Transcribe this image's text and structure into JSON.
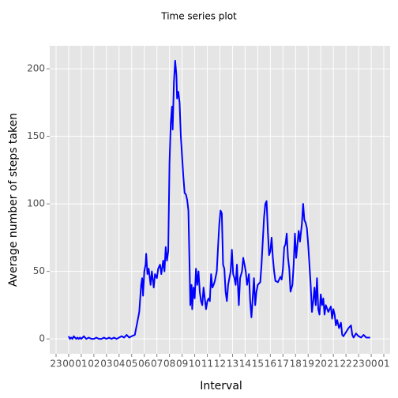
{
  "chart_data": {
    "type": "line",
    "title": "Time series plot",
    "x_label": "Interval",
    "y_label": "Average number of steps taken",
    "color": "#0000ff",
    "grid": true,
    "x": [
      0,
      0.1,
      0.2,
      0.3,
      0.4,
      0.5,
      0.6,
      0.7,
      0.8,
      0.9,
      1.0,
      1.2,
      1.4,
      1.6,
      1.8,
      2.0,
      2.2,
      2.4,
      2.6,
      2.8,
      3.0,
      3.2,
      3.4,
      3.6,
      3.8,
      4.0,
      4.2,
      4.4,
      4.6,
      4.8,
      5.0,
      5.25,
      5.5,
      5.6,
      5.75,
      5.83,
      5.9,
      6.0,
      6.1,
      6.15,
      6.25,
      6.35,
      6.5,
      6.6,
      6.75,
      6.85,
      7.0,
      7.1,
      7.25,
      7.35,
      7.5,
      7.6,
      7.7,
      7.8,
      7.9,
      8.0,
      8.1,
      8.2,
      8.25,
      8.35,
      8.45,
      8.55,
      8.6,
      8.7,
      8.8,
      8.9,
      9.0,
      9.1,
      9.2,
      9.3,
      9.4,
      9.5,
      9.6,
      9.65,
      9.75,
      9.8,
      9.9,
      10.0,
      10.1,
      10.2,
      10.3,
      10.4,
      10.5,
      10.6,
      10.7,
      10.8,
      10.9,
      11.0,
      11.1,
      11.2,
      11.3,
      11.4,
      11.5,
      11.6,
      11.75,
      11.85,
      11.95,
      12.05,
      12.15,
      12.25,
      12.35,
      12.45,
      12.55,
      12.65,
      12.75,
      12.85,
      12.95,
      13.05,
      13.15,
      13.25,
      13.35,
      13.5,
      13.6,
      13.75,
      13.85,
      13.95,
      14.05,
      14.15,
      14.3,
      14.4,
      14.5,
      14.6,
      14.7,
      14.8,
      14.9,
      15.0,
      15.2,
      15.3,
      15.5,
      15.6,
      15.7,
      15.8,
      15.9,
      16.0,
      16.1,
      16.2,
      16.3,
      16.4,
      16.6,
      16.8,
      16.9,
      17.0,
      17.1,
      17.2,
      17.3,
      17.4,
      17.5,
      17.6,
      17.75,
      17.85,
      17.95,
      18.05,
      18.15,
      18.25,
      18.35,
      18.5,
      18.6,
      18.7,
      18.8,
      18.9,
      19.0,
      19.1,
      19.2,
      19.3,
      19.4,
      19.5,
      19.6,
      19.7,
      19.8,
      19.9,
      20.0,
      20.1,
      20.2,
      20.3,
      20.4,
      20.6,
      20.8,
      20.9,
      21.0,
      21.1,
      21.2,
      21.3,
      21.45,
      21.6,
      21.7,
      21.8,
      22.0,
      22.2,
      22.4,
      22.5,
      22.6,
      22.8,
      23.0,
      23.2,
      23.4,
      23.6,
      23.92
    ],
    "values": [
      2,
      0,
      1,
      0,
      2,
      1,
      0,
      1,
      0,
      1,
      0,
      2,
      0,
      1,
      0,
      0,
      1,
      0,
      0,
      1,
      0,
      1,
      0,
      1,
      0,
      1,
      2,
      1,
      3,
      1,
      2,
      3,
      15,
      20,
      40,
      45,
      32,
      50,
      55,
      63,
      48,
      52,
      40,
      50,
      38,
      48,
      45,
      52,
      55,
      48,
      58,
      50,
      68,
      58,
      65,
      130,
      160,
      172,
      155,
      190,
      206,
      195,
      178,
      183,
      175,
      150,
      135,
      120,
      108,
      107,
      103,
      95,
      50,
      25,
      40,
      22,
      38,
      30,
      52,
      40,
      50,
      35,
      28,
      25,
      38,
      30,
      22,
      28,
      30,
      28,
      48,
      38,
      40,
      43,
      50,
      68,
      85,
      95,
      93,
      55,
      52,
      35,
      28,
      40,
      45,
      50,
      66,
      48,
      45,
      40,
      55,
      25,
      45,
      50,
      60,
      55,
      50,
      40,
      48,
      28,
      16,
      30,
      45,
      25,
      35,
      40,
      42,
      55,
      90,
      100,
      102,
      80,
      62,
      65,
      75,
      60,
      50,
      43,
      42,
      46,
      44,
      52,
      68,
      70,
      78,
      60,
      52,
      35,
      40,
      55,
      78,
      60,
      70,
      80,
      72,
      85,
      100,
      88,
      86,
      82,
      70,
      55,
      40,
      20,
      28,
      38,
      25,
      45,
      22,
      18,
      33,
      25,
      30,
      18,
      25,
      20,
      24,
      15,
      22,
      18,
      10,
      14,
      8,
      12,
      3,
      2,
      5,
      8,
      10,
      3,
      1,
      4,
      2,
      1,
      3,
      1,
      1
    ],
    "xlim": [
      -1.5,
      25.5
    ],
    "ylim": [
      -11,
      217
    ],
    "xticks": [
      {
        "value": -1,
        "label": "23"
      },
      {
        "value": 0,
        "label": "00"
      },
      {
        "value": 1,
        "label": "01"
      },
      {
        "value": 2,
        "label": "02"
      },
      {
        "value": 3,
        "label": "03"
      },
      {
        "value": 4,
        "label": "04"
      },
      {
        "value": 5,
        "label": "05"
      },
      {
        "value": 6,
        "label": "06"
      },
      {
        "value": 7,
        "label": "07"
      },
      {
        "value": 8,
        "label": "08"
      },
      {
        "value": 9,
        "label": "09"
      },
      10,
      11,
      12,
      13,
      14,
      15,
      16,
      17,
      18,
      19,
      20,
      21,
      22,
      23,
      {
        "value": 24,
        "label": "00"
      },
      {
        "value": 25,
        "label": "01"
      }
    ],
    "yticks": [
      0,
      50,
      100,
      150,
      200
    ]
  }
}
